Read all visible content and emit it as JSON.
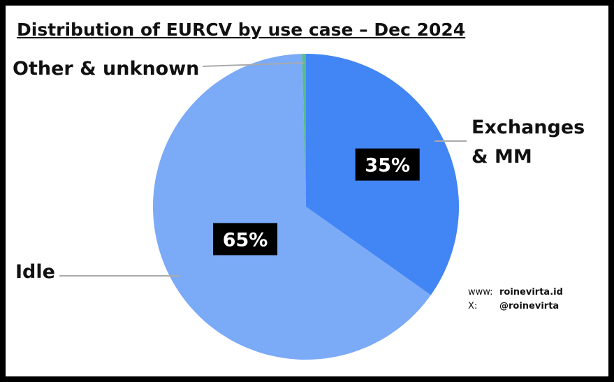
{
  "chart_data": {
    "type": "pie",
    "title": "Distribution of EURCV by use case – Dec 2024",
    "categories": [
      "Exchanges & MM",
      "Idle",
      "Other & unknown"
    ],
    "values": [
      34.8,
      64.8,
      0.4
    ],
    "value_labels": [
      "35%",
      "65%",
      null
    ],
    "colors": [
      "#4285f4",
      "#7baaf7",
      "#57bb8a"
    ],
    "credits": [
      {
        "key": "www:",
        "text": "roinevirta.id"
      },
      {
        "key": "X:",
        "text": "@roinevirta"
      }
    ]
  }
}
